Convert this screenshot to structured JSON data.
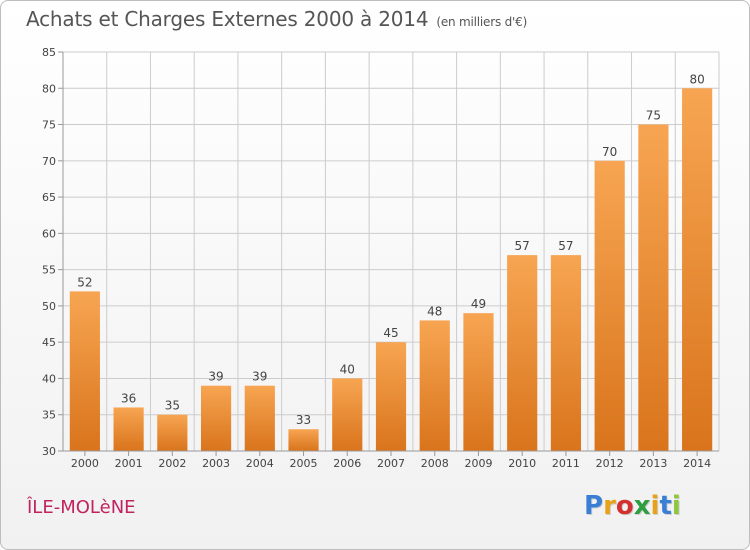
{
  "header": {
    "title": "Achats et Charges Externes 2000 à 2014",
    "unit": "(en milliers d'€)"
  },
  "footer": {
    "commune": "ÎLE-MOLèNE",
    "logo_letters": [
      "P",
      "r",
      "o",
      "x",
      "i",
      "t",
      "i"
    ],
    "logo_colors": [
      "#3a7fd5",
      "#e8a21a",
      "#d3312f",
      "#2e9e3e",
      "#e8a21a",
      "#3a7fd5",
      "#8dc63f"
    ]
  },
  "colors": {
    "bar_top": "#f7a552",
    "bar_bottom": "#d9741c",
    "grid": "#cccccc",
    "axis": "#999999"
  },
  "chart_data": {
    "type": "bar",
    "categories": [
      "2000",
      "2001",
      "2002",
      "2003",
      "2004",
      "2005",
      "2006",
      "2007",
      "2008",
      "2009",
      "2010",
      "2011",
      "2012",
      "2013",
      "2014"
    ],
    "values": [
      52,
      36,
      35,
      39,
      39,
      33,
      40,
      45,
      48,
      49,
      57,
      57,
      70,
      75,
      80
    ],
    "data_labels": [
      "52",
      "36",
      "35",
      "39",
      "39",
      "33",
      "40",
      "45",
      "48",
      "49",
      "57",
      "57",
      "70",
      "75",
      "80"
    ],
    "title": "Achats et Charges Externes 2000 à 2014",
    "xlabel": "",
    "ylabel": "",
    "ylim": [
      30,
      85
    ],
    "yticks": [
      "30",
      "35",
      "40",
      "45",
      "50",
      "55",
      "60",
      "65",
      "70",
      "75",
      "80",
      "85"
    ],
    "grid": true,
    "legend": "none"
  }
}
